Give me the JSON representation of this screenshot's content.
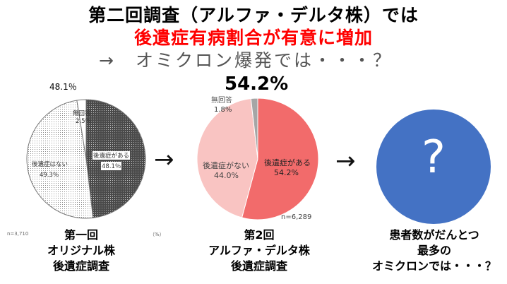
{
  "header": {
    "line1": "第二回調査（アルファ・デルタ株）では",
    "line2": "後遺症有病割合が有意に増加",
    "line3": "→　オミクロン爆発では・・・？"
  },
  "arrows": [
    "→",
    "→"
  ],
  "chart_data": [
    {
      "type": "pie",
      "slices": [
        {
          "label": "後遺症がある",
          "value": 48.1,
          "pattern": "dark-dots"
        },
        {
          "label": "後遺症はない",
          "value": 49.3,
          "pattern": "light-dots"
        },
        {
          "label": "無回答",
          "value": 2.5,
          "pattern": "white"
        }
      ],
      "value_labels": [
        "48.1％",
        "49.3％",
        "2.5％"
      ],
      "top_label": "48.1％",
      "n_label": "n=3,710",
      "unit_label": "（%）",
      "caption": [
        "第一回",
        "オリジナル株",
        "後遺症調査"
      ]
    },
    {
      "type": "pie",
      "slices": [
        {
          "label": "後遺症がある",
          "value": 54.2,
          "color": "#f26b6b"
        },
        {
          "label": "後遺症がない",
          "value": 44.0,
          "color": "#f9c4c2"
        },
        {
          "label": "無回答",
          "value": 1.8,
          "color": "#a6a6a6"
        }
      ],
      "value_labels": [
        "54.2%",
        "44.0%",
        "1.8%"
      ],
      "headline": "54.2%",
      "n_label": "n=6,289",
      "caption": [
        "第2回",
        "アルファ・デルタ株",
        "後遺症調査"
      ]
    },
    {
      "type": "pie",
      "slices": [
        {
          "label": "?",
          "value": 100,
          "color": "#4472c4"
        }
      ],
      "symbol": "?",
      "caption": [
        "患者数がだんとつ",
        "最多の",
        "オミクロンでは・・・？"
      ]
    }
  ]
}
